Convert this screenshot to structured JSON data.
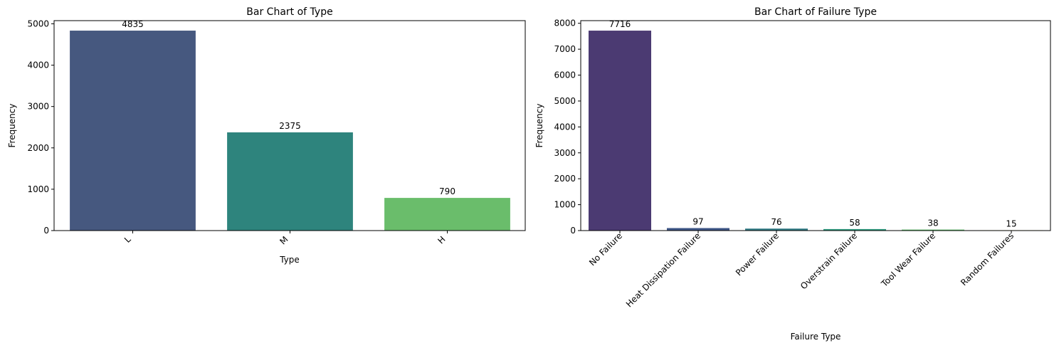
{
  "chart_data": [
    {
      "type": "bar",
      "title": "Bar Chart of Type",
      "xlabel": "Type",
      "ylabel": "Frequency",
      "categories": [
        "L",
        "M",
        "H"
      ],
      "values": [
        4835,
        2375,
        790
      ],
      "data_labels": [
        "4835",
        "2375",
        "790"
      ],
      "colors": [
        "#46587f",
        "#2e847d",
        "#6abd6b"
      ],
      "ylim": [
        0,
        5076.75
      ],
      "yticks": [
        0,
        1000,
        2000,
        3000,
        4000,
        5000
      ],
      "xtick_rotation": 45,
      "grid": false,
      "legend": "none"
    },
    {
      "type": "bar",
      "title": "Bar Chart of Failure Type",
      "xlabel": "Failure Type",
      "ylabel": "Frequency",
      "categories": [
        "No Failure",
        "Heat Dissipation Failure",
        "Power Failure",
        "Overstrain Failure",
        "Tool Wear Failure",
        "Random Failures"
      ],
      "values": [
        7716,
        97,
        76,
        58,
        38,
        15
      ],
      "data_labels": [
        "7716",
        "97",
        "76",
        "58",
        "38",
        "15"
      ],
      "colors": [
        "#4b3a72",
        "#3e5687",
        "#2f7a84",
        "#2a9b7e",
        "#5cbf6a",
        "#d8db4a"
      ],
      "ylim": [
        0,
        8101.8
      ],
      "yticks": [
        0,
        1000,
        2000,
        3000,
        4000,
        5000,
        6000,
        7000,
        8000
      ],
      "xtick_rotation": 45,
      "grid": false,
      "legend": "none"
    }
  ]
}
